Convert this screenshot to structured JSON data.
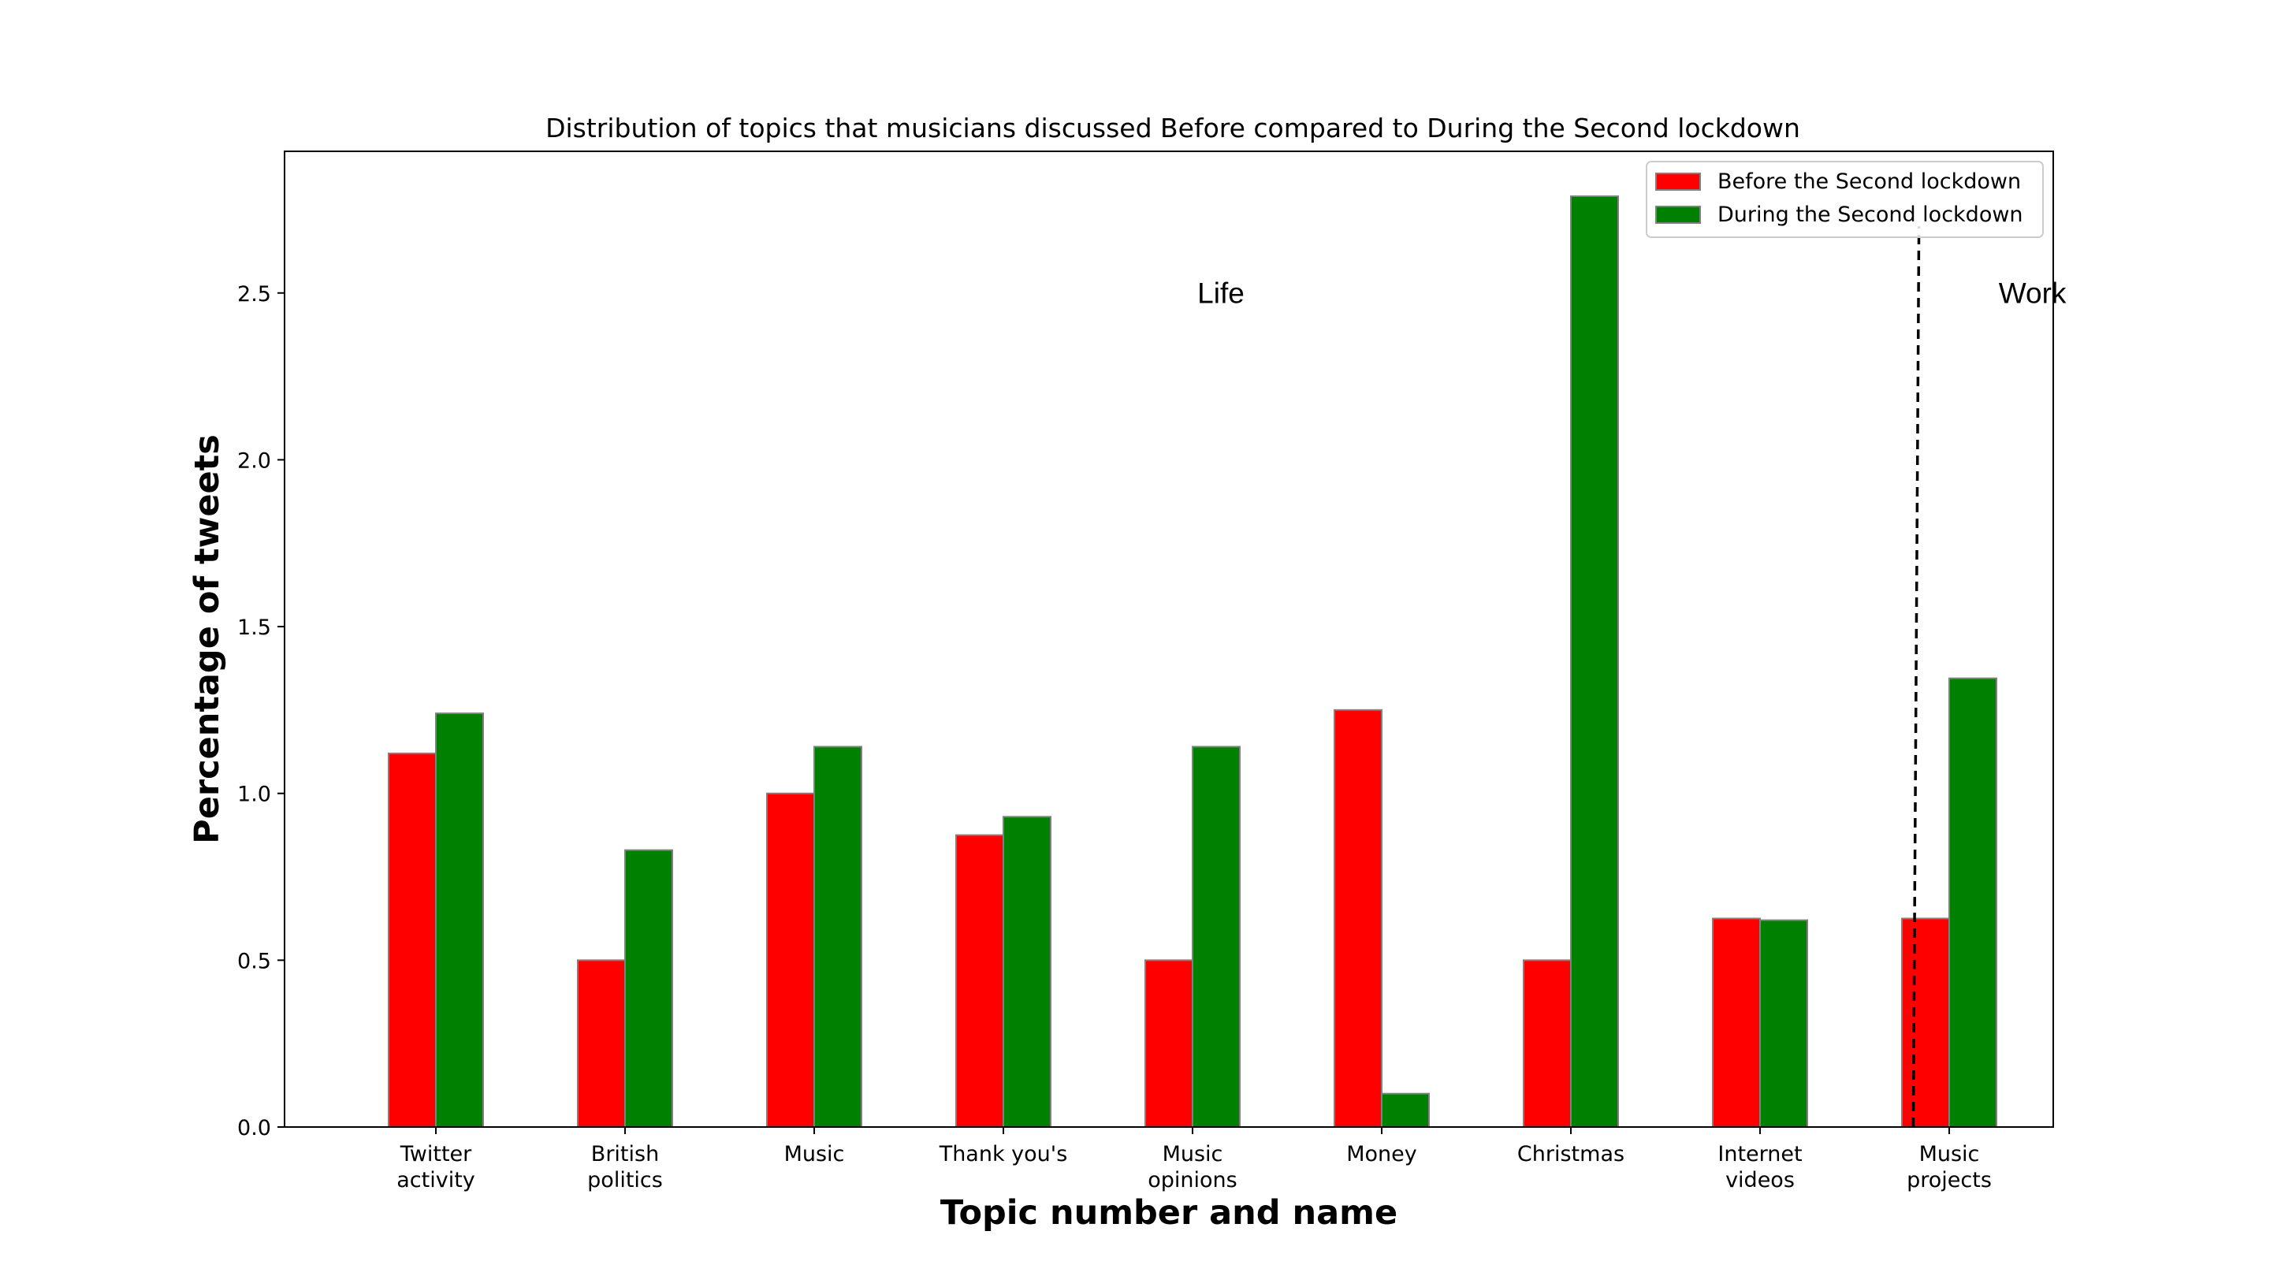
{
  "chart_data": {
    "type": "bar",
    "title": "Distribution of topics that musicians discussed Before compared to During the Second lockdown",
    "xlabel": "Topic number and name",
    "ylabel": "Percentage of tweets",
    "categories": [
      [
        "Twitter",
        "activity"
      ],
      [
        "British",
        "politics"
      ],
      [
        "Music"
      ],
      [
        "Thank you's"
      ],
      [
        "Music",
        "opinions"
      ],
      [
        "Money"
      ],
      [
        "Christmas"
      ],
      [
        "Internet",
        "videos"
      ],
      [
        "Music",
        "projects"
      ]
    ],
    "series": [
      {
        "name": "Before the Second lockdown",
        "color": "#ff0000",
        "values": [
          1.12,
          0.5,
          1.0,
          0.875,
          0.5,
          1.25,
          0.5,
          0.625,
          0.625
        ]
      },
      {
        "name": "During the Second lockdown",
        "color": "#008000",
        "values": [
          1.24,
          0.83,
          1.14,
          0.93,
          1.14,
          0.1,
          2.79,
          0.62,
          1.345
        ]
      }
    ],
    "ylim": [
      0,
      2.8
    ],
    "yticks": [
      "0.0",
      "0.5",
      "1.0",
      "1.5",
      "2.0",
      "2.5"
    ],
    "legend_position": "top-right",
    "grid": false,
    "annotations": [
      {
        "text": "Life",
        "x": 4.15,
        "y": 2.47
      },
      {
        "text": "Work",
        "x": 8.44,
        "y": 2.47
      }
    ],
    "divider": {
      "style": "dashed",
      "x_bottom": 7.81,
      "x_top": 7.84,
      "y_bottom": 0.0,
      "y_top": 2.7
    }
  }
}
